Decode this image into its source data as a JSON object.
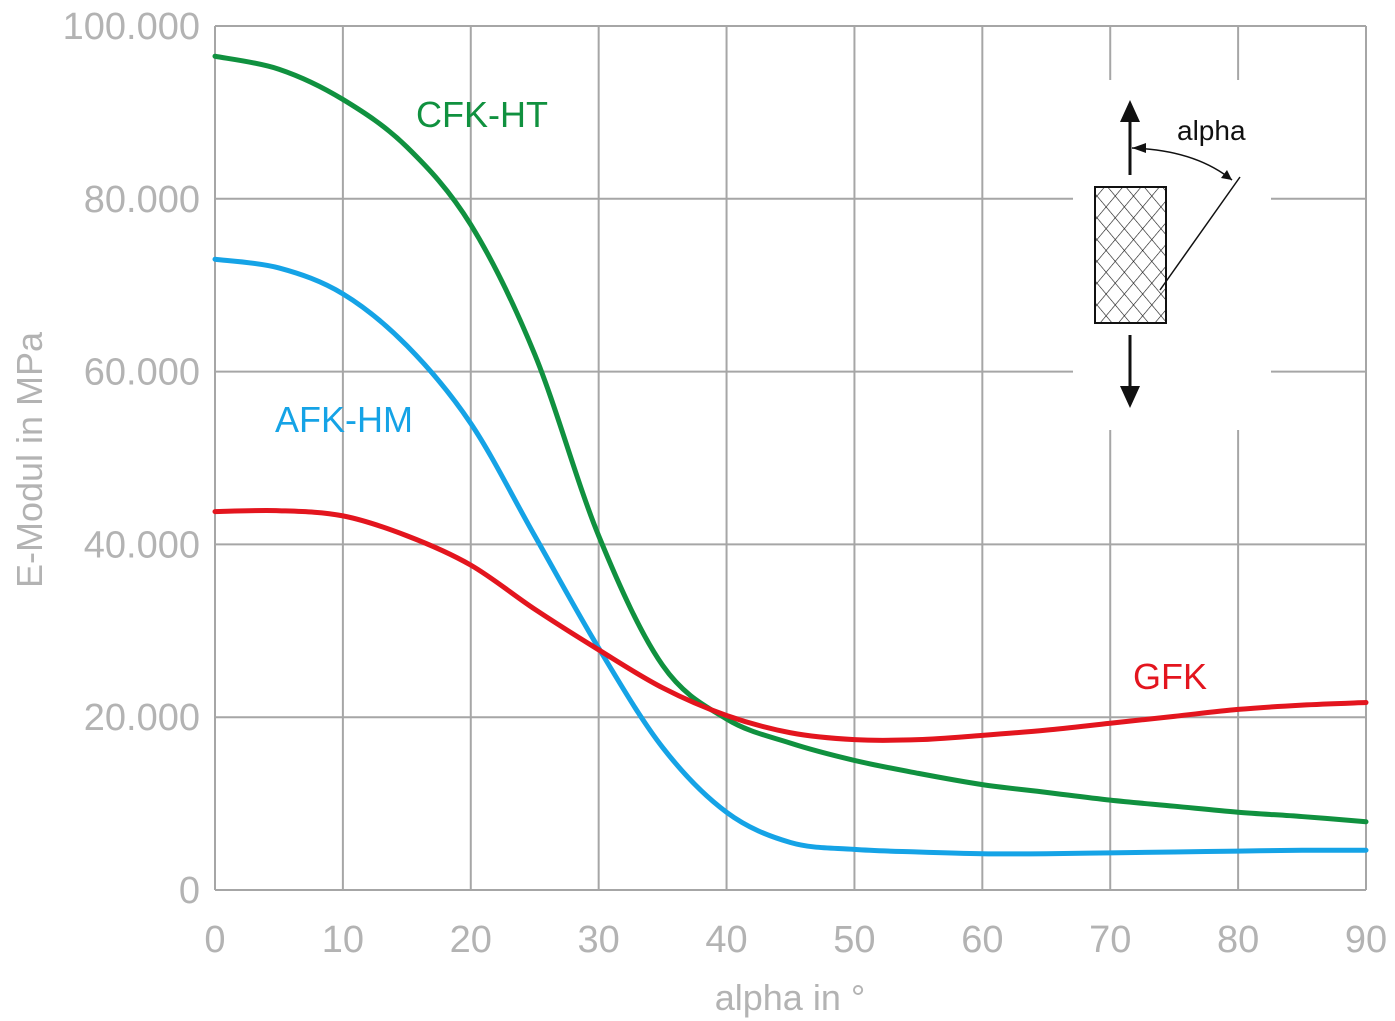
{
  "chart_data": {
    "type": "line",
    "title": "",
    "xlabel": "alpha in °",
    "ylabel": "E-Modul in MPa",
    "xlim": [
      0,
      90
    ],
    "ylim": [
      0,
      100000
    ],
    "x_ticks": [
      "0",
      "10",
      "20",
      "30",
      "40",
      "50",
      "60",
      "70",
      "80",
      "90"
    ],
    "y_ticks": [
      "0",
      "20.000",
      "40.000",
      "60.000",
      "80.000",
      "100.000"
    ],
    "grid": true,
    "x": [
      0,
      5,
      10,
      15,
      20,
      25,
      30,
      35,
      40,
      45,
      50,
      55,
      60,
      65,
      70,
      75,
      80,
      85,
      90
    ],
    "series": [
      {
        "name": "CFK-HT",
        "color": "#10913f",
        "values": [
          96500,
          95000,
          91500,
          86000,
          77000,
          62000,
          41000,
          26000,
          19800,
          17000,
          15000,
          13500,
          12200,
          11300,
          10400,
          9700,
          9000,
          8500,
          7900
        ]
      },
      {
        "name": "AFK-HM",
        "color": "#15a3e6",
        "values": [
          73000,
          72000,
          69000,
          63000,
          54000,
          41000,
          28000,
          16500,
          9000,
          5500,
          4700,
          4400,
          4200,
          4200,
          4300,
          4400,
          4500,
          4600,
          4600
        ]
      },
      {
        "name": "GFK",
        "color": "#e3151e",
        "values": [
          43800,
          43900,
          43300,
          41000,
          37600,
          32500,
          27800,
          23400,
          20200,
          18200,
          17400,
          17400,
          17900,
          18500,
          19300,
          20100,
          20900,
          21400,
          21700
        ]
      }
    ]
  },
  "inset": {
    "angle_label": "alpha",
    "angle_deg": 30
  }
}
